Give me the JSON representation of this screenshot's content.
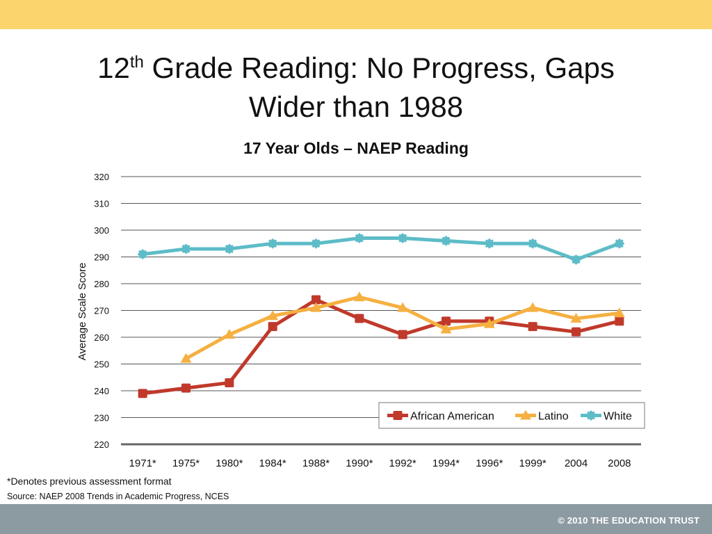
{
  "colors": {
    "top_band": "#FCD46E",
    "bottom_band": "#8C9AA2",
    "african_american": "#C0392B",
    "latino": "#F5B041",
    "white": "#5DBCC8",
    "gridline": "#555555"
  },
  "slide": {
    "title_main": "12",
    "title_sup": "th",
    "title_rest": " Grade Reading:  No Progress, Gaps",
    "title_line2": "Wider than 1988",
    "footnote": "*Denotes previous assessment format",
    "source": "Source: NAEP 2008 Trends in Academic Progress, NCES",
    "copyright": "© 2010 THE EDUCATION TRUST"
  },
  "chart_data": {
    "type": "line",
    "title": "17 Year Olds – NAEP Reading",
    "xlabel": "",
    "ylabel": "Average Scale Score",
    "ylim": [
      220,
      320
    ],
    "ytick_step": 10,
    "grid": true,
    "legend_position": "bottom-right",
    "categories": [
      "1971*",
      "1975*",
      "1980*",
      "1984*",
      "1988*",
      "1990*",
      "1992*",
      "1994*",
      "1996*",
      "1999*",
      "2004",
      "2008"
    ],
    "series": [
      {
        "name": "African American",
        "marker": "square",
        "color": "#C0392B",
        "values": [
          239,
          241,
          243,
          264,
          274,
          267,
          261,
          266,
          266,
          264,
          262,
          266
        ]
      },
      {
        "name": "Latino",
        "marker": "triangle",
        "color": "#F5B041",
        "values": [
          null,
          252,
          261,
          268,
          271,
          275,
          271,
          263,
          265,
          271,
          267,
          269
        ]
      },
      {
        "name": "White",
        "marker": "diamond-x",
        "color": "#5DBCC8",
        "values": [
          291,
          293,
          293,
          295,
          295,
          297,
          297,
          296,
          295,
          295,
          289,
          295
        ]
      }
    ]
  }
}
